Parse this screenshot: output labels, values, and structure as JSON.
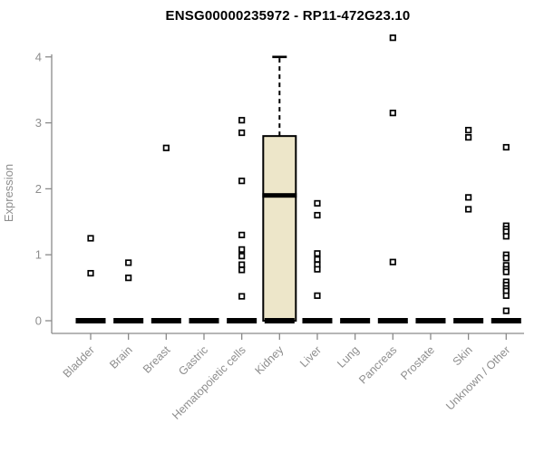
{
  "chart_data": {
    "type": "boxplot",
    "title": "ENSG00000235972 - RP11-472G23.10",
    "xlabel": "",
    "ylabel": "Expression",
    "ylim": [
      0,
      4.3
    ],
    "yticks": [
      0,
      1,
      2,
      3,
      4
    ],
    "grid": false,
    "legend": "none",
    "categories": [
      "Bladder",
      "Brain",
      "Breast",
      "Gastric",
      "Hematopoietic cells",
      "Kidney",
      "Liver",
      "Lung",
      "Pancreas",
      "Prostate",
      "Skin",
      "Unknown / Other"
    ],
    "boxes": [
      {
        "category": "Bladder",
        "q1": 0,
        "median": 0,
        "q3": 0,
        "whisker_low": 0,
        "whisker_high": 0,
        "outliers": [
          1.25,
          0.72
        ]
      },
      {
        "category": "Brain",
        "q1": 0,
        "median": 0,
        "q3": 0,
        "whisker_low": 0,
        "whisker_high": 0,
        "outliers": [
          0.88,
          0.65
        ]
      },
      {
        "category": "Breast",
        "q1": 0,
        "median": 0,
        "q3": 0,
        "whisker_low": 0,
        "whisker_high": 0,
        "outliers": [
          2.62
        ]
      },
      {
        "category": "Gastric",
        "q1": 0,
        "median": 0,
        "q3": 0,
        "whisker_low": 0,
        "whisker_high": 0,
        "outliers": []
      },
      {
        "category": "Hematopoietic cells",
        "q1": 0,
        "median": 0,
        "q3": 0,
        "whisker_low": 0,
        "whisker_high": 0,
        "outliers": [
          3.04,
          2.85,
          2.12,
          1.3,
          1.08,
          0.98,
          0.85,
          0.77,
          0.37
        ]
      },
      {
        "category": "Kidney",
        "q1": 0,
        "median": 1.9,
        "q3": 2.8,
        "whisker_low": 0,
        "whisker_high": 4.0,
        "outliers": []
      },
      {
        "category": "Liver",
        "q1": 0,
        "median": 0,
        "q3": 0,
        "whisker_low": 0,
        "whisker_high": 0,
        "outliers": [
          1.78,
          1.6,
          1.02,
          0.93,
          0.85,
          0.78,
          0.38
        ]
      },
      {
        "category": "Lung",
        "q1": 0,
        "median": 0,
        "q3": 0,
        "whisker_low": 0,
        "whisker_high": 0,
        "outliers": []
      },
      {
        "category": "Pancreas",
        "q1": 0,
        "median": 0,
        "q3": 0,
        "whisker_low": 0,
        "whisker_high": 0,
        "outliers": [
          4.29,
          3.15,
          0.89
        ]
      },
      {
        "category": "Prostate",
        "q1": 0,
        "median": 0,
        "q3": 0,
        "whisker_low": 0,
        "whisker_high": 0,
        "outliers": []
      },
      {
        "category": "Skin",
        "q1": 0,
        "median": 0,
        "q3": 0,
        "whisker_low": 0,
        "whisker_high": 0,
        "outliers": [
          2.89,
          2.78,
          1.87,
          1.69
        ]
      },
      {
        "category": "Unknown / Other",
        "q1": 0,
        "median": 0,
        "q3": 0,
        "whisker_low": 0,
        "whisker_high": 0,
        "outliers": [
          2.63,
          1.44,
          1.39,
          1.35,
          1.28,
          1.0,
          0.95,
          0.84,
          0.78,
          0.74,
          0.59,
          0.54,
          0.49,
          0.45,
          0.38,
          0.15
        ]
      }
    ],
    "colors": {
      "box_fill": "#EDE6C9",
      "box_border": "#000000",
      "median": "#000000",
      "outlier": "#000000",
      "axis": "#8a8a8a",
      "tick_text": "#8e8e8e",
      "title_text": "#000000",
      "background": "#ffffff"
    }
  }
}
